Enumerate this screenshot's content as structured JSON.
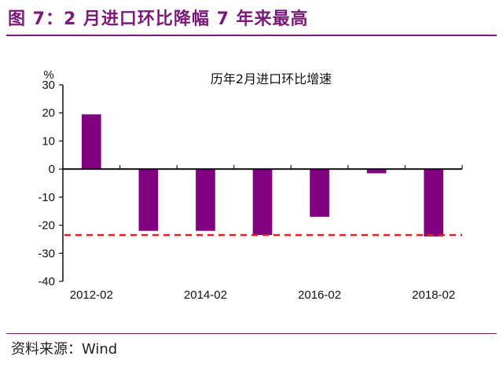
{
  "figure": {
    "title": "图 7：2 月进口环比降幅 7 年来最高",
    "source": "资料来源：Wind"
  },
  "chart_data": {
    "type": "bar",
    "title": "历年2月进口环比增速",
    "ylabel": "%",
    "categories": [
      "2012-02",
      "2013-02",
      "2014-02",
      "2015-02",
      "2016-02",
      "2017-02",
      "2018-02"
    ],
    "x_tick_labels": [
      "2012-02",
      "",
      "2014-02",
      "",
      "2016-02",
      "",
      "2018-02"
    ],
    "series": [
      {
        "values": [
          19.5,
          -22,
          -22,
          -23.5,
          -17,
          -1.5,
          -24
        ]
      }
    ],
    "ylim": [
      -40,
      30
    ],
    "y_ticks": [
      30,
      20,
      10,
      0,
      -10,
      -20,
      -30,
      -40
    ],
    "reference_line": {
      "value": -23.5,
      "style": "dashed",
      "color": "#e02020"
    },
    "bar_color": "#800080",
    "grid": false
  }
}
